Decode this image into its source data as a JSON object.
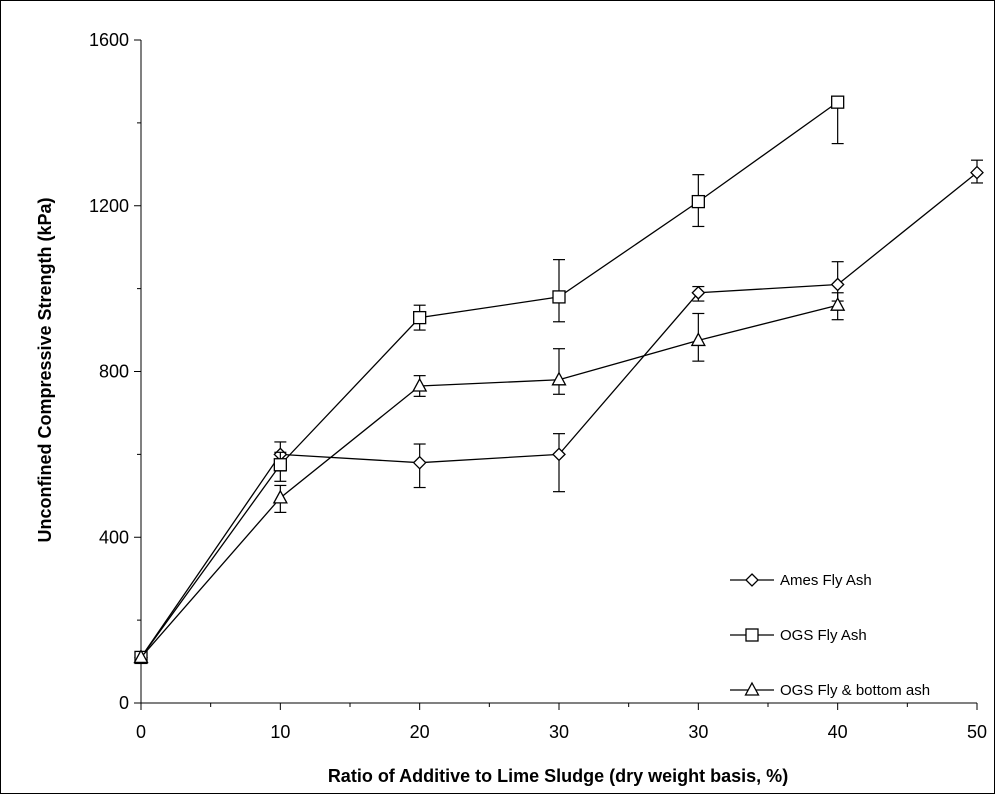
{
  "chart_data": {
    "type": "line",
    "title": "",
    "xlabel": "Ratio of Additive to Lime Sludge (dry weight basis, %)",
    "ylabel": "Unconfined Compressive Strength (kPa)",
    "categories": [
      "0",
      "10",
      "20",
      "30",
      "30",
      "40",
      "50"
    ],
    "ylim": [
      0,
      1600
    ],
    "yticks": [
      0,
      400,
      800,
      1200,
      1600
    ],
    "grid": false,
    "legend_position": "bottom-right",
    "series": [
      {
        "name": "Ames Fly Ash",
        "marker": "diamond",
        "points": [
          {
            "x": 0,
            "y": 110,
            "err_low": 0,
            "err_high": 0
          },
          {
            "x": 1,
            "y": 600,
            "err_low": 40,
            "err_high": 30
          },
          {
            "x": 2,
            "y": 580,
            "err_low": 60,
            "err_high": 45
          },
          {
            "x": 3,
            "y": 600,
            "err_low": 90,
            "err_high": 50
          },
          {
            "x": 4,
            "y": 990,
            "err_low": 20,
            "err_high": 15
          },
          {
            "x": 5,
            "y": 1010,
            "err_low": 40,
            "err_high": 55
          },
          {
            "x": 6,
            "y": 1280,
            "err_low": 25,
            "err_high": 30
          }
        ]
      },
      {
        "name": "OGS Fly Ash",
        "marker": "square",
        "points": [
          {
            "x": 0,
            "y": 110,
            "err_low": 0,
            "err_high": 0
          },
          {
            "x": 1,
            "y": 575,
            "err_low": 40,
            "err_high": 30
          },
          {
            "x": 2,
            "y": 930,
            "err_low": 30,
            "err_high": 30
          },
          {
            "x": 3,
            "y": 980,
            "err_low": 60,
            "err_high": 90
          },
          {
            "x": 4,
            "y": 1210,
            "err_low": 60,
            "err_high": 65
          },
          {
            "x": 5,
            "y": 1450,
            "err_low": 100,
            "err_high": 0
          }
        ]
      },
      {
        "name": "OGS Fly & bottom ash",
        "marker": "triangle",
        "points": [
          {
            "x": 0,
            "y": 110,
            "err_low": 0,
            "err_high": 0
          },
          {
            "x": 1,
            "y": 495,
            "err_low": 35,
            "err_high": 30
          },
          {
            "x": 2,
            "y": 765,
            "err_low": 25,
            "err_high": 25
          },
          {
            "x": 3,
            "y": 780,
            "err_low": 35,
            "err_high": 75
          },
          {
            "x": 4,
            "y": 875,
            "err_low": 50,
            "err_high": 65
          },
          {
            "x": 5,
            "y": 960,
            "err_low": 35,
            "err_high": 30
          }
        ]
      }
    ]
  }
}
